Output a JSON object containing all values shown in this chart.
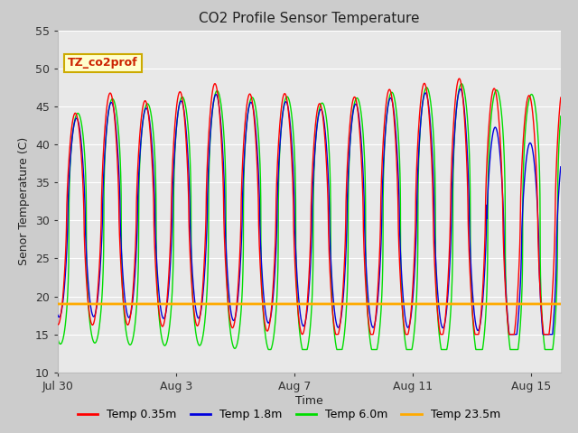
{
  "title": "CO2 Profile Sensor Temperature",
  "xlabel": "Time",
  "ylabel": "Senor Temperature (C)",
  "ylim": [
    10,
    55
  ],
  "yticks": [
    10,
    15,
    20,
    25,
    30,
    35,
    40,
    45,
    50,
    55
  ],
  "annotation_text": "TZ_co2prof",
  "annotation_bg": "#ffffcc",
  "annotation_border": "#ccaa00",
  "annotation_text_color": "#cc2200",
  "colors": {
    "temp_035": "#ff0000",
    "temp_18": "#0000dd",
    "temp_60": "#00dd00",
    "temp_235": "#ffaa00"
  },
  "legend_labels": [
    "Temp 0.35m",
    "Temp 1.8m",
    "Temp 6.0m",
    "Temp 23.5m"
  ],
  "fig_bg_color": "#cccccc",
  "plot_bg": "#e8e8e8",
  "grid_color": "#ffffff",
  "num_days": 17,
  "temp_235_value": 19.0,
  "xtick_positions": [
    0,
    4,
    8,
    12,
    16
  ],
  "xtick_labels": [
    "Jul 30",
    "Aug 3",
    "Aug 7",
    "Aug 11",
    "Aug 15"
  ]
}
